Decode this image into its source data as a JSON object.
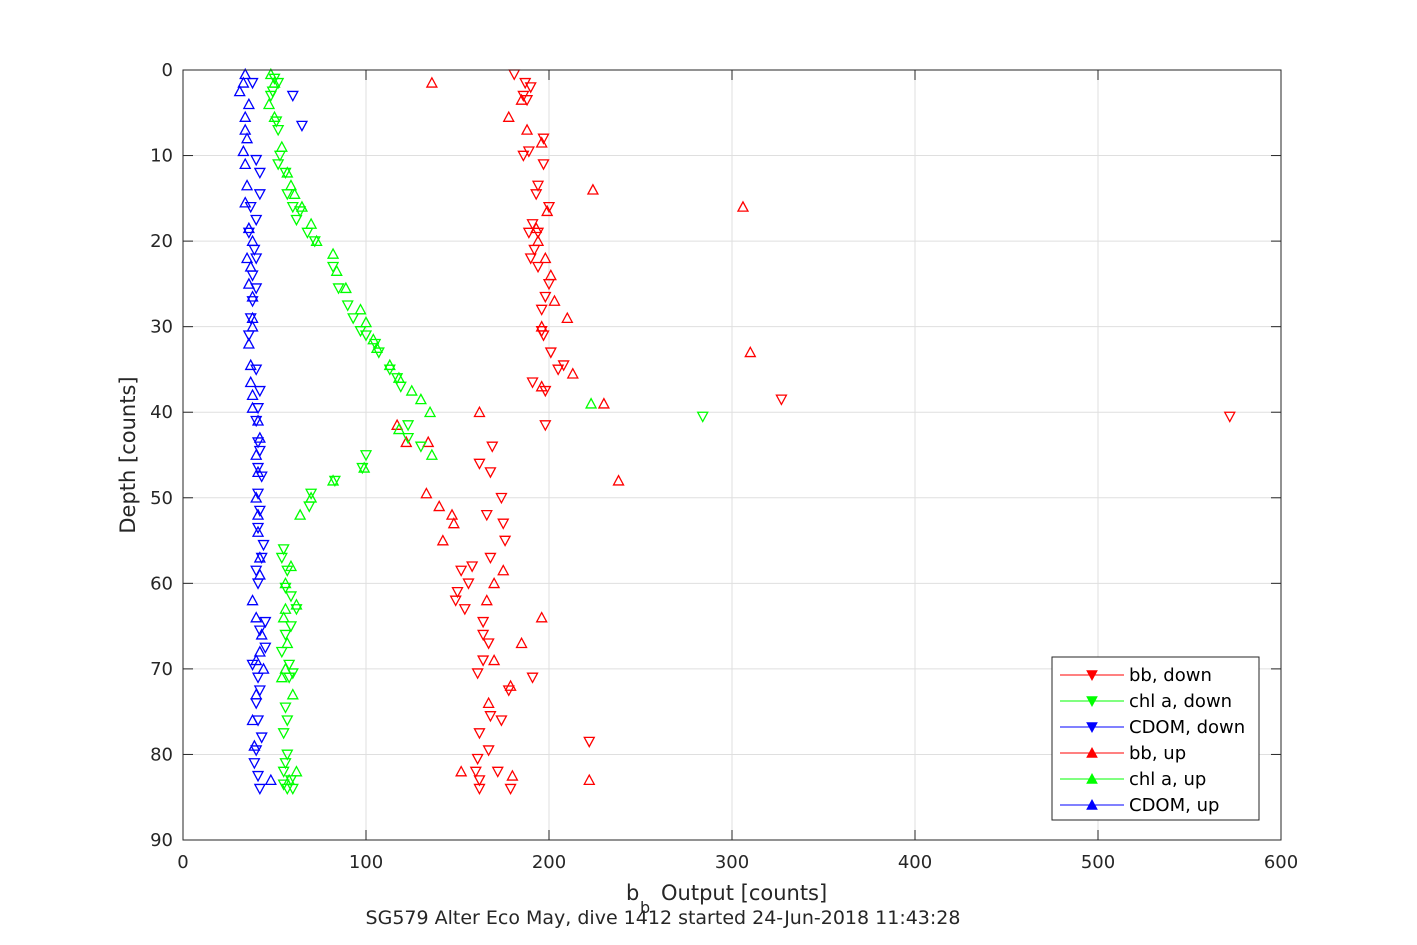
{
  "chart_data": {
    "type": "scatter",
    "title": "SG579 Alter Eco May, dive 1412 started 24-Jun-2018 11:43:28",
    "xlabel": "Output [counts]",
    "xlabel_symbol": "b",
    "xlabel_subscript": "b",
    "ylabel": "Depth [counts]",
    "xlim": [
      0,
      600
    ],
    "ylim": [
      0,
      90
    ],
    "y_reversed": true,
    "grid": true,
    "legend_position": "bottom-right",
    "xticks": [
      "0",
      "100",
      "200",
      "300",
      "400",
      "500",
      "600"
    ],
    "yticks": [
      "0",
      "10",
      "20",
      "30",
      "40",
      "50",
      "60",
      "70",
      "80",
      "90"
    ],
    "series": [
      {
        "name": "bb, down",
        "color": "#ff0000",
        "marker": "triangle-down",
        "x": [
          181,
          187,
          190,
          186,
          188,
          197,
          189,
          186,
          197,
          194,
          193,
          200,
          191,
          189,
          194,
          192,
          190,
          194,
          200,
          198,
          196,
          196,
          197,
          201,
          208,
          205,
          191,
          198,
          327,
          572,
          198,
          169,
          162,
          168,
          174,
          166,
          175,
          176,
          168,
          158,
          152,
          156,
          150,
          149,
          154,
          164,
          164,
          167,
          164,
          161,
          191,
          178,
          168,
          174,
          162,
          222,
          167,
          161,
          160,
          172,
          162,
          162,
          179
        ],
        "y": [
          0.5,
          1.5,
          2,
          3,
          3.5,
          8,
          9.5,
          10,
          11,
          13.5,
          14.5,
          16,
          18,
          19,
          19,
          21,
          22,
          23,
          25,
          26.5,
          28,
          30.5,
          31,
          33,
          34.5,
          35,
          36.5,
          37.5,
          38.5,
          40.5,
          41.5,
          44,
          46,
          47,
          50,
          52,
          53,
          55,
          57,
          58,
          58.5,
          60,
          61,
          62,
          63,
          64.5,
          66,
          67,
          69,
          70.5,
          71,
          72.5,
          75.5,
          76,
          77.5,
          78.5,
          79.5,
          80.5,
          82,
          82,
          83,
          84,
          84
        ]
      },
      {
        "name": "bb, up",
        "color": "#ff0000",
        "marker": "triangle-up",
        "x": [
          136,
          185,
          178,
          188,
          196,
          224,
          306,
          199,
          193,
          194,
          198,
          201,
          203,
          210,
          196,
          310,
          213,
          196,
          162,
          230,
          238,
          133,
          117,
          122,
          134,
          140,
          147,
          148,
          142,
          175,
          170,
          166,
          196,
          185,
          170,
          179,
          167,
          152,
          222,
          180
        ],
        "y": [
          1.5,
          3.5,
          5.5,
          7,
          8.5,
          14,
          16,
          16.5,
          18.5,
          20,
          22,
          24,
          27,
          29,
          30,
          33,
          35.5,
          37,
          40,
          39,
          48,
          49.5,
          41.5,
          43.5,
          43.5,
          51,
          52,
          53,
          55,
          58.5,
          60,
          62,
          64,
          67,
          69,
          72,
          74,
          82,
          83,
          82.5
        ]
      },
      {
        "name": "chl a, down",
        "color": "#00ff00",
        "marker": "triangle-down",
        "x": [
          50,
          52,
          49,
          48,
          51,
          52,
          53,
          52,
          56,
          57,
          60,
          64,
          62,
          68,
          72,
          82,
          85,
          90,
          93,
          97,
          100,
          105,
          107,
          113,
          117,
          119,
          284,
          123,
          123,
          130,
          100,
          98,
          83,
          70,
          69,
          55,
          54,
          57,
          56,
          59,
          62,
          59,
          56,
          54,
          58,
          60,
          58,
          56,
          57,
          55,
          57,
          56,
          55,
          59,
          55,
          57,
          60
        ],
        "y": [
          1,
          1.5,
          2.5,
          3,
          6,
          7,
          10,
          11,
          12,
          14.5,
          16,
          16.5,
          17.5,
          19,
          20,
          23,
          25.5,
          27.5,
          29,
          30.5,
          31,
          32,
          33,
          35,
          36,
          37,
          40.5,
          41.5,
          43,
          44,
          45,
          46.5,
          48,
          49.5,
          51,
          56,
          57,
          58.5,
          60.5,
          61.5,
          63,
          65,
          66,
          68,
          69.5,
          70.5,
          71,
          74.5,
          76,
          77.5,
          80,
          81,
          82,
          83,
          83.5,
          84,
          84
        ]
      },
      {
        "name": "chl a, up",
        "color": "#00ff00",
        "marker": "triangle-up",
        "x": [
          48,
          50,
          47,
          50,
          54,
          57,
          59,
          61,
          65,
          70,
          73,
          82,
          84,
          89,
          97,
          100,
          104,
          106,
          113,
          118,
          125,
          130,
          135,
          223,
          118,
          136,
          99,
          82,
          70,
          64,
          59,
          56,
          56,
          62,
          55,
          57,
          56,
          54,
          60,
          62,
          58
        ],
        "y": [
          0.5,
          1.5,
          4,
          5.5,
          9,
          12,
          13.5,
          14.5,
          16,
          18,
          20,
          21.5,
          23.5,
          25.5,
          28,
          29.5,
          31.5,
          32.5,
          34.5,
          36,
          37.5,
          38.5,
          40,
          39,
          42,
          45,
          46.5,
          48,
          50,
          52,
          58,
          60,
          63,
          62.5,
          64,
          67,
          70,
          71,
          73,
          82,
          83
        ]
      },
      {
        "name": "CDOM, down",
        "color": "#0000ff",
        "marker": "triangle-down",
        "x": [
          38,
          60,
          65,
          40,
          42,
          42,
          37,
          40,
          36,
          39,
          40,
          38,
          40,
          38,
          37,
          36,
          40,
          42,
          41,
          40,
          41,
          42,
          41,
          43,
          41,
          42,
          41,
          44,
          43,
          40,
          41,
          45,
          42,
          45,
          38,
          41,
          42,
          40,
          41,
          43,
          40,
          39,
          41,
          42
        ],
        "y": [
          1.5,
          3,
          6.5,
          10.5,
          12,
          14.5,
          16,
          17.5,
          19,
          21,
          22,
          24,
          25.5,
          27,
          29,
          31,
          35,
          37.5,
          39.5,
          41,
          43.5,
          44.5,
          46.5,
          47.5,
          49.5,
          51.5,
          53.5,
          55.5,
          57,
          58.5,
          60,
          64.5,
          65.5,
          67.5,
          69.5,
          71,
          72.5,
          74,
          76,
          78,
          79.5,
          81,
          82.5,
          84
        ]
      },
      {
        "name": "CDOM, up",
        "color": "#0000ff",
        "marker": "triangle-up",
        "x": [
          34,
          33,
          31,
          36,
          34,
          34,
          35,
          33,
          34,
          35,
          34,
          36,
          38,
          35,
          37,
          36,
          38,
          38,
          38,
          36,
          37,
          37,
          38,
          38,
          41,
          42,
          40,
          41,
          40,
          41,
          41,
          42,
          42,
          38,
          40,
          43,
          42,
          40,
          44,
          40,
          38,
          39,
          48
        ],
        "y": [
          0.5,
          1.5,
          2.5,
          4,
          5.5,
          7,
          8,
          9.5,
          11,
          13.5,
          15.5,
          18.5,
          20,
          22,
          23,
          25,
          26.5,
          29,
          30,
          32,
          34.5,
          36.5,
          38,
          39.5,
          41,
          43,
          45,
          47,
          50,
          52,
          54,
          57,
          59,
          62,
          64,
          66,
          68,
          69,
          70,
          73,
          76,
          79,
          83
        ]
      }
    ]
  }
}
